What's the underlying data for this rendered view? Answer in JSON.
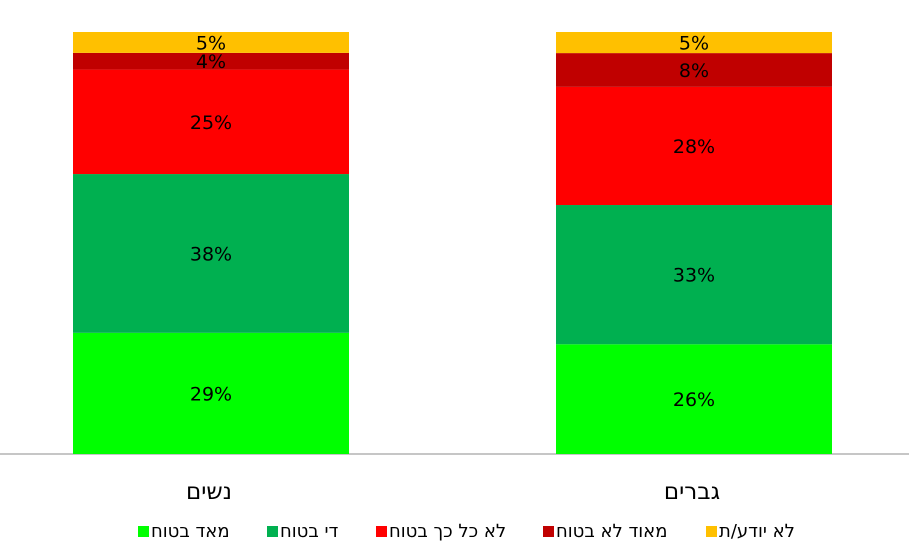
{
  "chart_data": {
    "type": "bar",
    "stacked": true,
    "percent_stacked": true,
    "categories": [
      "נשים",
      "גברים"
    ],
    "series": [
      {
        "name": "מאד בטוח",
        "color": "#00ff00",
        "values": [
          29,
          26
        ]
      },
      {
        "name": "די בטוח",
        "color": "#00b050",
        "values": [
          38,
          33
        ]
      },
      {
        "name": "לא כל כך בטוח",
        "color": "#ff0000",
        "values": [
          25,
          28
        ]
      },
      {
        "name": "מאוד לא בטוח",
        "color": "#c00000",
        "values": [
          4,
          8
        ]
      },
      {
        "name": "לא יודע/ת",
        "color": "#ffc000",
        "values": [
          5,
          5
        ]
      }
    ],
    "data_labels": [
      [
        "29%",
        "26%"
      ],
      [
        "38%",
        "33%"
      ],
      [
        "25%",
        "28%"
      ],
      [
        "4%",
        "8%"
      ],
      [
        "5%",
        "5%"
      ]
    ],
    "ylim": [
      0,
      100
    ],
    "grid": false,
    "legend_position": "bottom"
  }
}
